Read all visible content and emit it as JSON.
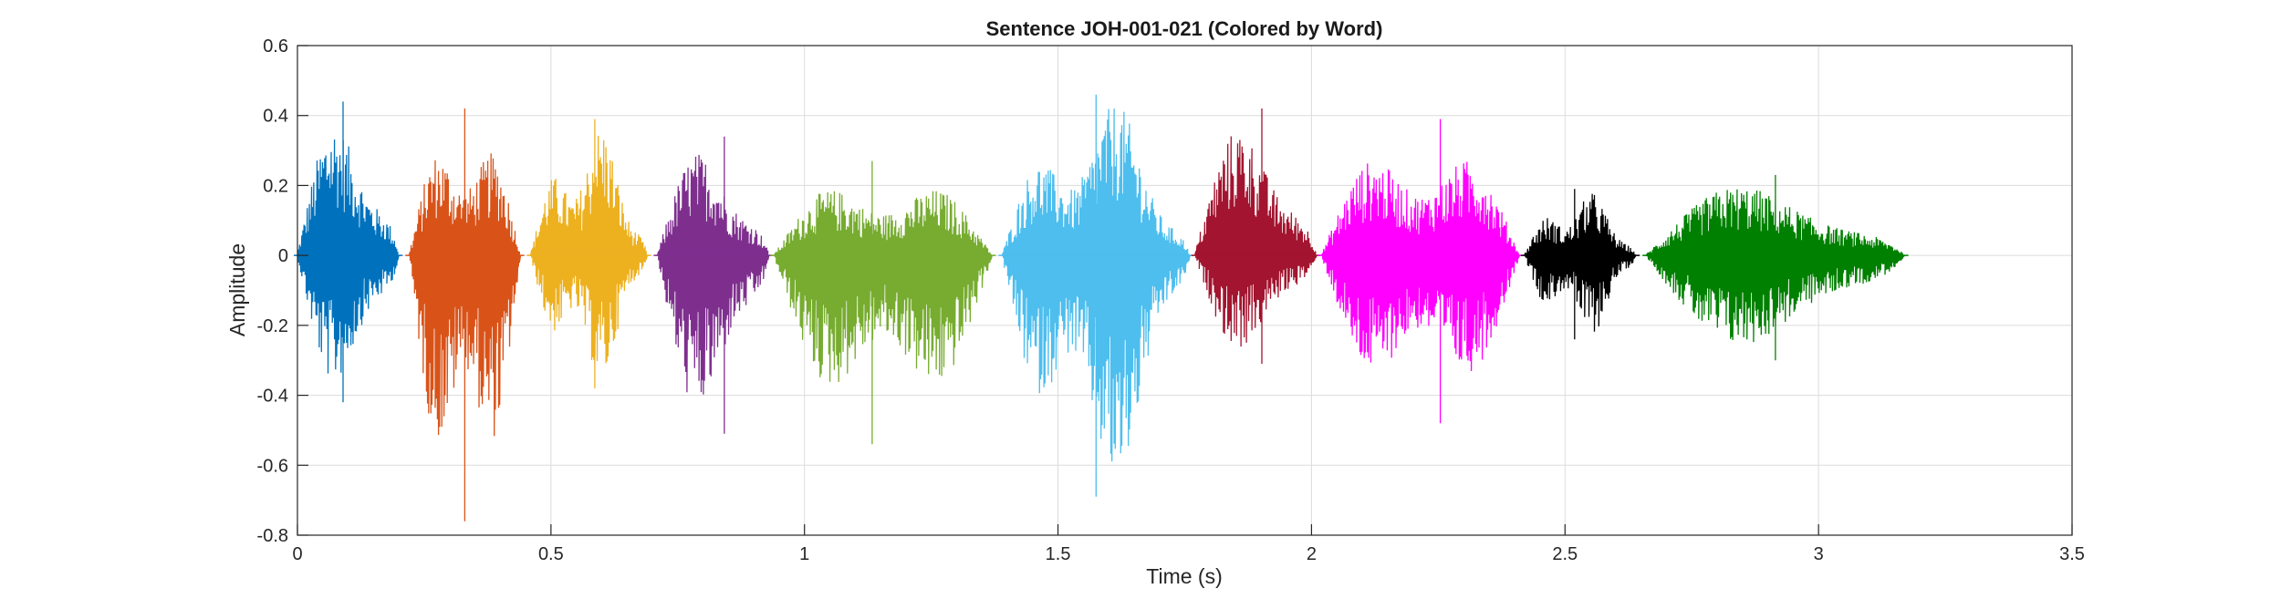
{
  "chart_data": {
    "type": "line",
    "title": "Sentence JOH-001-021 (Colored by Word)",
    "xlabel": "Time (s)",
    "ylabel": "Amplitude",
    "xlim": [
      0,
      3.5
    ],
    "ylim": [
      -0.8,
      0.6
    ],
    "x_ticks": [
      0,
      0.5,
      1,
      1.5,
      2,
      2.5,
      3,
      3.5
    ],
    "x_tick_labels": [
      "0",
      "0.5",
      "1",
      "1.5",
      "2",
      "2.5",
      "3",
      "3.5"
    ],
    "y_ticks": [
      0.6,
      0.4,
      0.2,
      0,
      -0.2,
      -0.4,
      -0.6,
      -0.8
    ],
    "y_tick_labels": [
      "0.6",
      "0.4",
      "0.2",
      "0",
      "-0.2",
      "-0.4",
      "-0.6",
      "-0.8"
    ],
    "grid": true,
    "legend": "none",
    "series": [
      {
        "color": "#0072BD",
        "t_start": 0.0,
        "t_end": 0.2,
        "min": -0.42,
        "max": 0.44
      },
      {
        "color": "#D95319",
        "t_start": 0.22,
        "t_end": 0.44,
        "min": -0.76,
        "max": 0.42
      },
      {
        "color": "#EDB120",
        "t_start": 0.46,
        "t_end": 0.69,
        "min": -0.38,
        "max": 0.39
      },
      {
        "color": "#7E2F8E",
        "t_start": 0.71,
        "t_end": 0.93,
        "min": -0.51,
        "max": 0.34
      },
      {
        "color": "#77AC30",
        "t_start": 0.94,
        "t_end": 1.37,
        "min": -0.54,
        "max": 0.27
      },
      {
        "color": "#4DBEEE",
        "t_start": 1.39,
        "t_end": 1.76,
        "min": -0.69,
        "max": 0.46
      },
      {
        "color": "#A2142F",
        "t_start": 1.77,
        "t_end": 2.01,
        "min": -0.31,
        "max": 0.42
      },
      {
        "color": "#FF00FF",
        "t_start": 2.02,
        "t_end": 2.41,
        "min": -0.48,
        "max": 0.39
      },
      {
        "color": "#000000",
        "t_start": 2.42,
        "t_end": 2.64,
        "min": -0.24,
        "max": 0.19
      },
      {
        "color": "#008000",
        "t_start": 2.66,
        "t_end": 3.17,
        "min": -0.3,
        "max": 0.23
      }
    ]
  }
}
